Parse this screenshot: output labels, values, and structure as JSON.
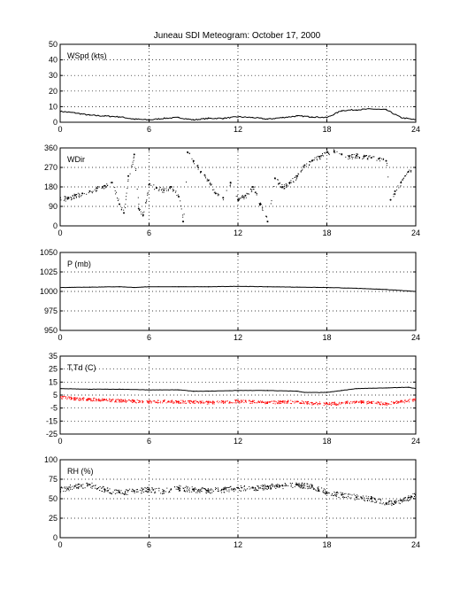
{
  "figure": {
    "title": "Juneau SDI Meteogram:    October 17, 2000"
  },
  "chart_data": [
    {
      "type": "line",
      "label": "WSpd (kts)",
      "x_range": [
        0,
        24
      ],
      "x_ticks": [
        0,
        6,
        12,
        18,
        24
      ],
      "ylim": [
        0,
        50
      ],
      "y_ticks": [
        0,
        10,
        20,
        30,
        40,
        50
      ],
      "grid": true,
      "series": [
        {
          "color": "#000000",
          "style": "line",
          "x": [
            0,
            1,
            2,
            3,
            4,
            5,
            6,
            7,
            8,
            9,
            10,
            11,
            12,
            13,
            14,
            15,
            16,
            17,
            18,
            19,
            20,
            21,
            22,
            23,
            24
          ],
          "y": [
            7,
            6,
            4.5,
            4,
            3.5,
            2,
            1.5,
            2.5,
            3,
            1.5,
            2.5,
            2.5,
            3.5,
            3,
            2,
            3,
            4,
            3.5,
            3,
            7.5,
            8,
            8.5,
            8,
            3,
            1.5
          ]
        }
      ]
    },
    {
      "type": "scatter",
      "label": "WDir",
      "x_range": [
        0,
        24
      ],
      "x_ticks": [
        0,
        6,
        12,
        18,
        24
      ],
      "ylim": [
        0,
        360
      ],
      "y_ticks": [
        0,
        90,
        180,
        270,
        360
      ],
      "grid": true,
      "series": [
        {
          "color": "#000000",
          "style": "points",
          "x": [
            0,
            0.5,
            1,
            1.5,
            2,
            2.5,
            3,
            3.5,
            4,
            4.3,
            4.6,
            5,
            5.3,
            5.6,
            6,
            6.5,
            7,
            7.5,
            8,
            8.3,
            8.6,
            9,
            9.5,
            10,
            10.5,
            11,
            11.5,
            12,
            12.5,
            13,
            13.5,
            14,
            14.5,
            15,
            15.5,
            16,
            16.5,
            17,
            17.5,
            18,
            18.5,
            19,
            19.5,
            20,
            20.5,
            21,
            21.5,
            22,
            22.3,
            22.6,
            23,
            23.5,
            24
          ],
          "y": [
            130,
            125,
            140,
            150,
            160,
            175,
            185,
            200,
            100,
            60,
            230,
            330,
            80,
            50,
            190,
            175,
            165,
            180,
            135,
            20,
            340,
            300,
            250,
            210,
            150,
            130,
            200,
            120,
            140,
            180,
            100,
            20,
            220,
            180,
            200,
            230,
            280,
            300,
            320,
            340,
            345,
            330,
            320,
            325,
            320,
            315,
            310,
            300,
            120,
            160,
            200,
            250,
            270
          ]
        }
      ]
    },
    {
      "type": "line",
      "label": "P (mb)",
      "x_range": [
        0,
        24
      ],
      "x_ticks": [
        0,
        6,
        12,
        18,
        24
      ],
      "ylim": [
        950,
        1050
      ],
      "y_ticks": [
        950,
        975,
        1000,
        1025,
        1050
      ],
      "grid": true,
      "series": [
        {
          "color": "#000000",
          "style": "line",
          "x": [
            0,
            2,
            4,
            5,
            6,
            8,
            10,
            12,
            14,
            16,
            18,
            20,
            22,
            24
          ],
          "y": [
            1005,
            1005.5,
            1006,
            1005,
            1006,
            1006,
            1006,
            1006.5,
            1006,
            1005.5,
            1005,
            1004,
            1002.5,
            1000
          ]
        }
      ]
    },
    {
      "type": "line",
      "label": "T,Td (C)",
      "x_range": [
        0,
        24
      ],
      "x_ticks": [
        0,
        6,
        12,
        18,
        24
      ],
      "ylim": [
        -25,
        35
      ],
      "y_ticks": [
        -25,
        -15,
        -5,
        5,
        15,
        25,
        35
      ],
      "grid": true,
      "series": [
        {
          "color": "#000000",
          "style": "line",
          "x": [
            0,
            2,
            4,
            6,
            8,
            9,
            10,
            12,
            14,
            16,
            16.5,
            18,
            19,
            20,
            22,
            23.5,
            24
          ],
          "y": [
            10,
            9.5,
            9.5,
            9,
            9,
            8,
            8,
            8.5,
            8.5,
            8,
            7,
            7,
            8.5,
            10,
            10.5,
            11,
            10
          ]
        },
        {
          "color": "#ff0000",
          "style": "points",
          "x": [
            0,
            1,
            2,
            3,
            4,
            5,
            6,
            7,
            8,
            9,
            10,
            11,
            12,
            13,
            14,
            15,
            16,
            17,
            18,
            19,
            20,
            21,
            22,
            23,
            24
          ],
          "y": [
            3.5,
            2.5,
            2,
            1.5,
            1,
            0.5,
            0,
            0.5,
            0,
            0,
            -0.5,
            0,
            0.5,
            0,
            -0.5,
            0,
            0,
            -1,
            -1.5,
            -1,
            0,
            -0.5,
            -1.5,
            0,
            2
          ]
        }
      ]
    },
    {
      "type": "scatter",
      "label": "RH (%)",
      "x_range": [
        0,
        24
      ],
      "x_ticks": [
        0,
        6,
        12,
        18,
        24
      ],
      "ylim": [
        0,
        100
      ],
      "y_ticks": [
        0,
        25,
        50,
        75,
        100
      ],
      "grid": true,
      "series": [
        {
          "color": "#000000",
          "style": "points",
          "x": [
            0,
            1,
            2,
            3,
            4,
            5,
            6,
            7,
            8,
            9,
            10,
            11,
            12,
            13,
            14,
            15,
            16,
            17,
            18,
            19,
            20,
            21,
            22,
            23,
            24
          ],
          "y": [
            62,
            66,
            68,
            62,
            58,
            60,
            62,
            60,
            64,
            62,
            61,
            62,
            64,
            64,
            66,
            67,
            68,
            66,
            58,
            55,
            52,
            50,
            44,
            48,
            55
          ]
        }
      ]
    }
  ]
}
